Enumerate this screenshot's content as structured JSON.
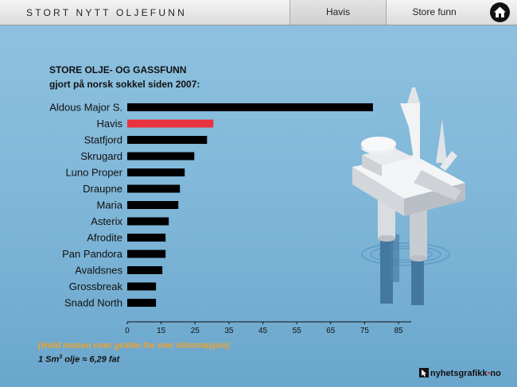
{
  "header": {
    "title": "STORT NYTT OLJEFUNN",
    "tabs": [
      {
        "label": "Havis"
      },
      {
        "label": "Store funn"
      }
    ],
    "home_icon": "home-icon"
  },
  "chart_data": {
    "type": "bar",
    "orientation": "horizontal",
    "title": "STORE OLJE- OG GASSFUNN",
    "subtitle": "gjort på norsk sokkel siden 2007:",
    "categories": [
      "Aldous Major S.",
      "Havis",
      "Statfjord",
      "Skrugard",
      "Luno Proper",
      "Draupne",
      "Maria",
      "Asterix",
      "Afrodite",
      "Pan Pandora",
      "Avaldsnes",
      "Grossbreak",
      "Snadd North"
    ],
    "values": [
      77,
      27,
      25,
      21,
      18,
      16.5,
      16,
      13,
      12,
      12,
      11,
      9,
      9
    ],
    "highlight": "Havis",
    "xticks": [
      0,
      15,
      25,
      35,
      45,
      55,
      65,
      75,
      85
    ],
    "xlim": [
      0,
      85
    ],
    "grid": false,
    "colors": {
      "bar": "#000000",
      "highlight": "#e8333c"
    }
  },
  "footer": {
    "hint": "(Hold musen over grafen for mer informasjon)",
    "conversion_prefix": "1 Sm",
    "conversion_sup": "3",
    "conversion_suffix": " olje ≈ 6,29 fat",
    "brand_left": "nyhetsgrafikk",
    "brand_dot": "•",
    "brand_right": "no"
  }
}
